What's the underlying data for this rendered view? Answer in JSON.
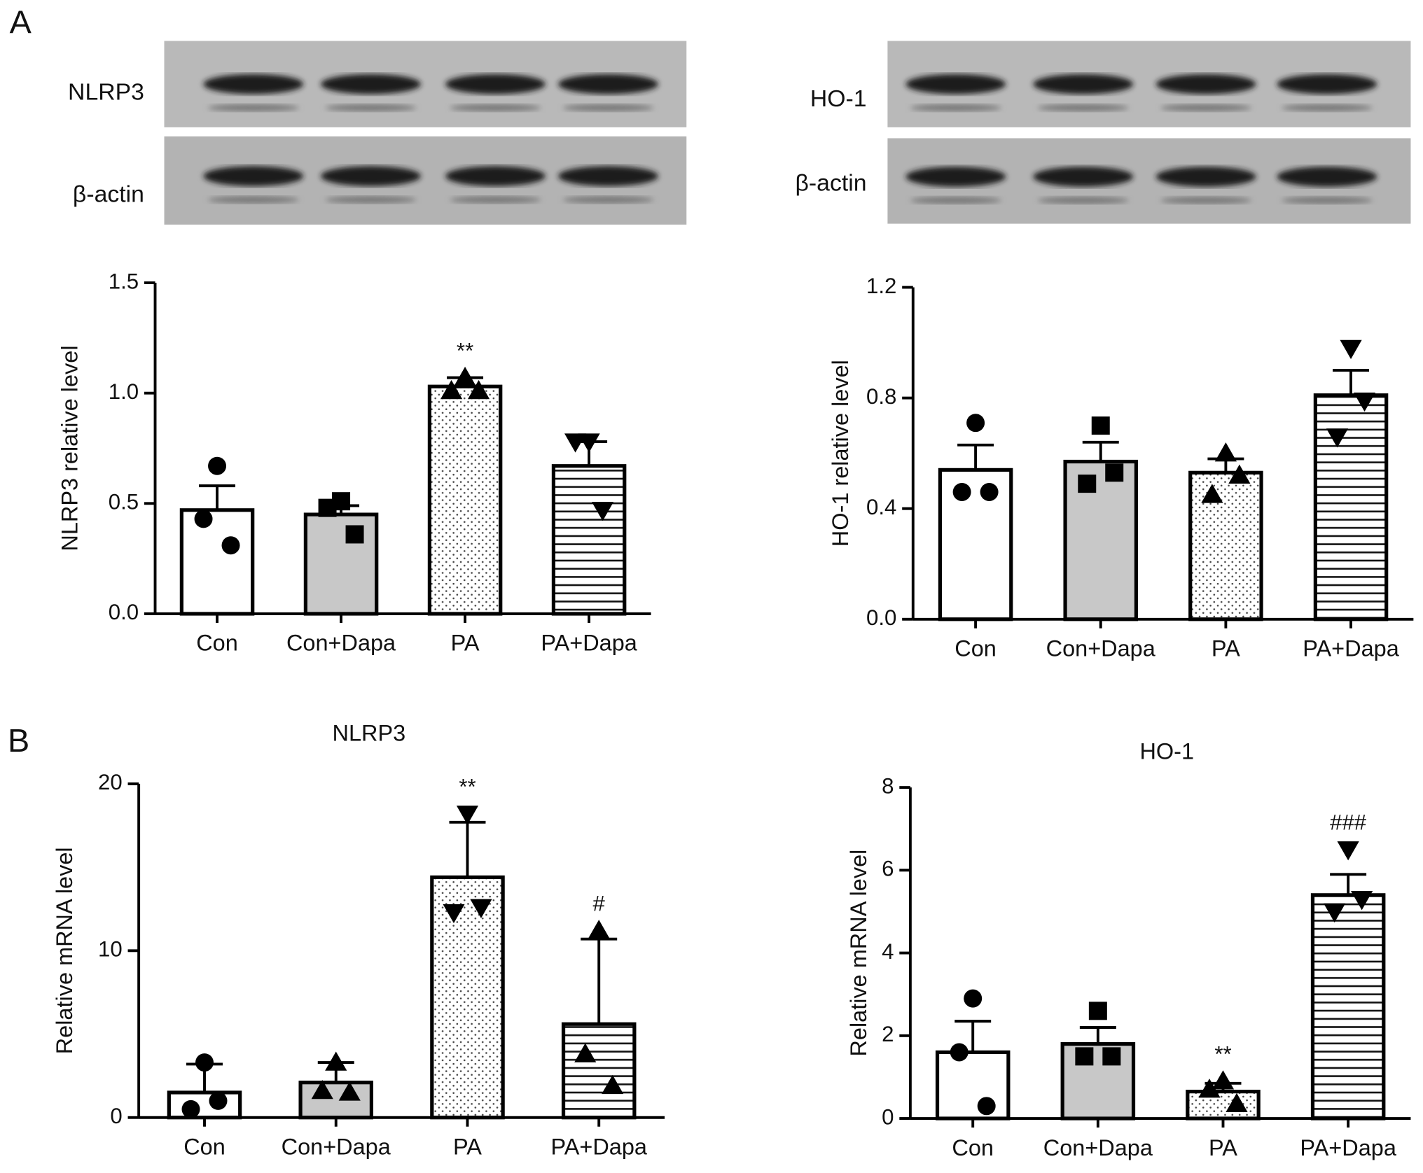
{
  "panel_labels": [
    "A",
    "B"
  ],
  "blots": [
    {
      "labels": [
        "NLRP3",
        "β-actin"
      ]
    },
    {
      "labels": [
        "HO-1",
        "β-actin"
      ]
    }
  ],
  "chart_data": [
    {
      "type": "bar",
      "ylabel": "NLRP3 relative level",
      "categories": [
        "Con",
        "Con+Dapa",
        "PA",
        "PA+Dapa"
      ],
      "values": [
        0.47,
        0.45,
        1.03,
        0.67
      ],
      "errors": [
        0.11,
        0.04,
        0.04,
        0.11
      ],
      "points": [
        [
          0.67,
          0.43,
          0.31
        ],
        [
          0.51,
          0.48,
          0.36
        ],
        [
          1.07,
          1.01,
          1.01
        ],
        [
          0.78,
          0.78,
          0.47
        ]
      ],
      "fills": [
        "#ffffff",
        "#c8c8c8",
        "dots",
        "hlines"
      ],
      "markers": [
        "circle",
        "square",
        "triangle-up",
        "triangle-down"
      ],
      "annotations": [
        {
          "category": "PA",
          "text": "**"
        }
      ],
      "ylim": [
        0,
        1.5
      ],
      "yticks": [
        {
          "value": 0,
          "label": "0.0"
        },
        {
          "value": 0.5,
          "label": "0.5"
        },
        {
          "value": 1,
          "label": "1.0"
        },
        {
          "value": 1.5,
          "label": "1.5"
        }
      ]
    },
    {
      "type": "bar",
      "ylabel": "HO-1 relative level",
      "categories": [
        "Con",
        "Con+Dapa",
        "PA",
        "PA+Dapa"
      ],
      "values": [
        0.54,
        0.57,
        0.53,
        0.81
      ],
      "errors": [
        0.09,
        0.07,
        0.05,
        0.09
      ],
      "points": [
        [
          0.71,
          0.46,
          0.46
        ],
        [
          0.7,
          0.49,
          0.53
        ],
        [
          0.6,
          0.45,
          0.52
        ],
        [
          0.98,
          0.66,
          0.79
        ]
      ],
      "fills": [
        "#ffffff",
        "#c8c8c8",
        "dots",
        "hlines"
      ],
      "markers": [
        "circle",
        "square",
        "triangle-up",
        "triangle-down"
      ],
      "annotations": [],
      "ylim": [
        0,
        1.2
      ],
      "yticks": [
        {
          "value": 0,
          "label": "0.0"
        },
        0.4,
        0.8,
        1.2
      ]
    },
    {
      "type": "bar",
      "title": "NLRP3",
      "ylabel": "Relative mRNA level",
      "categories": [
        "Con",
        "Con+Dapa",
        "PA",
        "PA+Dapa"
      ],
      "values": [
        1.5,
        2.1,
        14.4,
        5.6
      ],
      "errors": [
        1.7,
        1.2,
        3.3,
        5.1
      ],
      "points": [
        [
          3.3,
          0.5,
          1.0
        ],
        [
          3.3,
          1.6,
          1.5
        ],
        [
          18.2,
          12.3,
          12.6
        ],
        [
          11.2,
          3.8,
          1.9
        ]
      ],
      "fills": [
        "#ffffff",
        "#c8c8c8",
        "dots",
        "hlines"
      ],
      "markers": [
        "circle",
        "triangle-up",
        "triangle-down",
        "triangle-up"
      ],
      "annotations": [
        {
          "category": "PA",
          "text": "**"
        },
        {
          "category": "PA+Dapa",
          "text": "#"
        }
      ],
      "ylim": [
        0,
        20
      ],
      "yticks": [
        0,
        10,
        20
      ]
    },
    {
      "type": "bar",
      "title": "HO-1",
      "ylabel": "Relative mRNA level",
      "categories": [
        "Con",
        "Con+Dapa",
        "PA",
        "PA+Dapa"
      ],
      "values": [
        1.6,
        1.8,
        0.65,
        5.4
      ],
      "errors": [
        0.75,
        0.4,
        0.2,
        0.5
      ],
      "points": [
        [
          2.9,
          1.6,
          0.3
        ],
        [
          2.6,
          1.5,
          1.5
        ],
        [
          0.9,
          0.7,
          0.35
        ],
        [
          6.5,
          5.0,
          5.3
        ]
      ],
      "fills": [
        "#ffffff",
        "#c8c8c8",
        "dots",
        "hlines"
      ],
      "markers": [
        "circle",
        "square",
        "triangle-up",
        "triangle-down"
      ],
      "annotations": [
        {
          "category": "PA",
          "text": "**"
        },
        {
          "category": "PA+Dapa",
          "text": "###"
        }
      ],
      "ylim": [
        0,
        8
      ],
      "yticks": [
        0,
        2,
        4,
        6,
        8
      ]
    }
  ]
}
